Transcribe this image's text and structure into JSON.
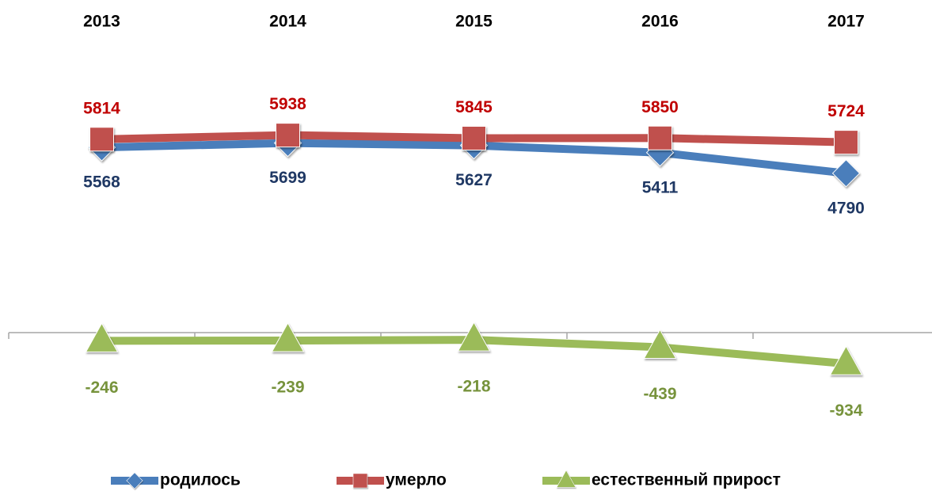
{
  "chart_data": {
    "type": "line",
    "categories": [
      "2013",
      "2014",
      "2015",
      "2016",
      "2017"
    ],
    "series": [
      {
        "name": "родилось",
        "color": "#4a7ebb",
        "label_color": "#1f3864",
        "marker": "diamond",
        "label_position": "below",
        "values": [
          5568,
          5699,
          5627,
          5411,
          4790
        ]
      },
      {
        "name": "умерло",
        "color": "#c0504d",
        "label_color": "#c00000",
        "marker": "square",
        "label_position": "above",
        "values": [
          5814,
          5938,
          5845,
          5850,
          5724
        ]
      },
      {
        "name": "естественный прирост",
        "color": "#9bbb59",
        "label_color": "#77933c",
        "marker": "triangle",
        "label_position": "below",
        "values": [
          -246,
          -239,
          -218,
          -439,
          -934
        ]
      }
    ],
    "ylim": [
      -4000,
      8000
    ],
    "grid": false,
    "legend": "bottom"
  }
}
